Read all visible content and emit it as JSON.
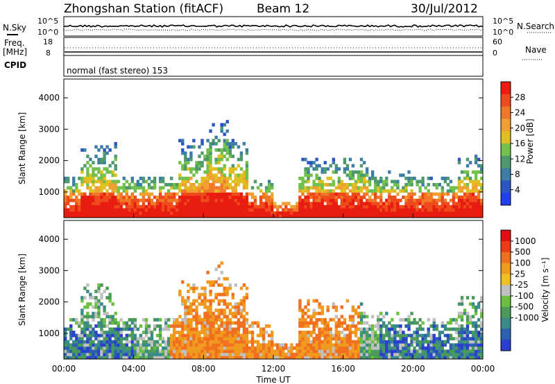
{
  "header": {
    "station": "Zhongshan Station (fitACF)",
    "beam": "Beam 12",
    "date": "30/Jul/2012"
  },
  "top_panels": {
    "nsky_label": "N.Sky",
    "nsky_ticks": [
      "10^5",
      "10^0"
    ],
    "nsearch_label": "N.Search",
    "nsearch_ticks": [
      "10^5",
      "10^0"
    ],
    "freq_label_line1": "Freq.",
    "freq_label_line2": "[MHz]",
    "freq_ticks": [
      "18",
      "8"
    ],
    "nave_label": "Nave",
    "nave_ticks": [
      "60",
      "0"
    ],
    "cpid_label": "CPID",
    "cpid_text": "normal (fast stereo) 153"
  },
  "colors": {
    "power_scale": [
      "#1f3ff0",
      "#2b56c4",
      "#3c7ea6",
      "#4f9a6c",
      "#72c14d",
      "#e0c020",
      "#f0a030",
      "#f07828",
      "#ee4a1c",
      "#e81c10"
    ],
    "velocity_scale": [
      "#2a3fd0",
      "#2b5fb0",
      "#3a8a8a",
      "#4a9a5a",
      "#6cc040",
      "#c0c0c0",
      "#f0c020",
      "#f09a20",
      "#f07020",
      "#ef3a18",
      "#e01010"
    ]
  },
  "chart_data": [
    {
      "type": "heatmap",
      "name": "power",
      "xlabel": "",
      "ylabel": "Slant Range [km]",
      "x_range_hours": [
        0,
        24
      ],
      "ylim": [
        180,
        4600
      ],
      "y_ticks": [
        "4000",
        "3000",
        "2000",
        "1000"
      ],
      "colorbar_label": "Power [dB]",
      "colorbar_ticks": [
        "28",
        "24",
        "20",
        "16",
        "12",
        "8",
        "4"
      ],
      "colorbar_range": [
        0,
        32
      ]
    },
    {
      "type": "heatmap",
      "name": "velocity",
      "xlabel": "Time UT",
      "ylabel": "Slant Range [km]",
      "x_range_hours": [
        0,
        24
      ],
      "x_ticks": [
        "00:00",
        "04:00",
        "08:00",
        "12:00",
        "16:00",
        "20:00",
        "00:00"
      ],
      "ylim": [
        180,
        4600
      ],
      "y_ticks": [
        "4000",
        "3000",
        "2000",
        "1000"
      ],
      "colorbar_label": "Velocity [m s⁻¹]",
      "colorbar_ticks": [
        "1000",
        "500",
        "100",
        "25",
        "-25",
        "-100",
        "-500",
        "-1000"
      ]
    }
  ]
}
